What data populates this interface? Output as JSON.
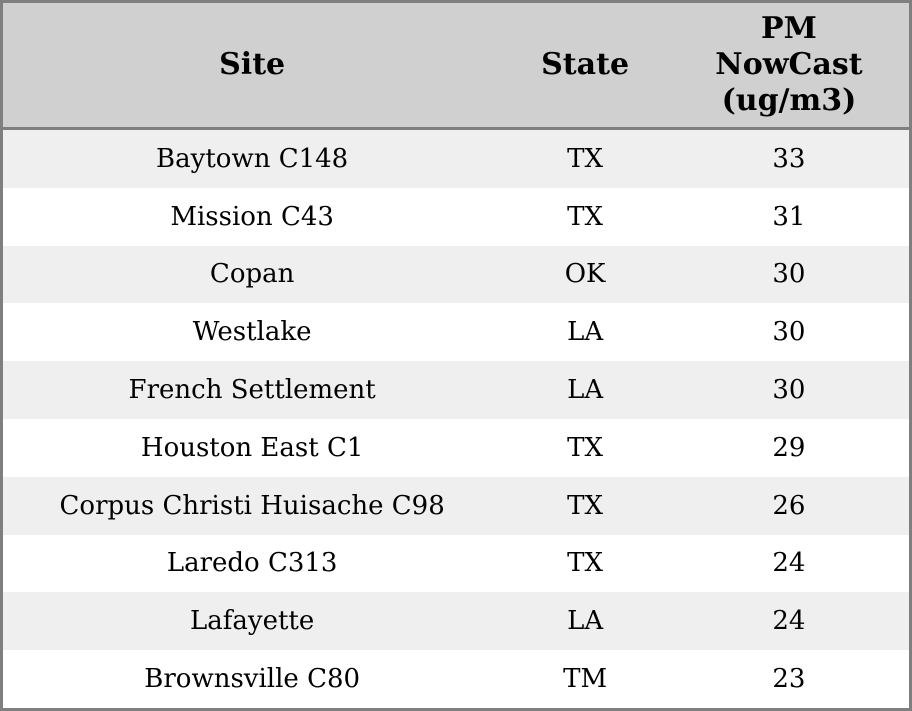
{
  "chart_data": {
    "type": "table",
    "columns": [
      "Site",
      "State",
      "PM NowCast (ug/m3)"
    ],
    "rows": [
      [
        "Baytown C148",
        "TX",
        33
      ],
      [
        "Mission C43",
        "TX",
        31
      ],
      [
        "Copan",
        "OK",
        30
      ],
      [
        "Westlake",
        "LA",
        30
      ],
      [
        "French Settlement",
        "LA",
        30
      ],
      [
        "Houston East C1",
        "TX",
        29
      ],
      [
        "Corpus Christi Huisache C98",
        "TX",
        26
      ],
      [
        "Laredo C313",
        "TX",
        24
      ],
      [
        "Lafayette",
        "LA",
        24
      ],
      [
        "Brownsville C80",
        "TM",
        23
      ]
    ]
  },
  "header": {
    "site": "Site",
    "state": "State",
    "pm": "PM\nNowCast\n(ug/m3)"
  },
  "colors": {
    "header_bg": "#d0d0d0",
    "row_odd_bg": "#efefef",
    "row_even_bg": "#ffffff",
    "border": "#7f7f7f",
    "text": "#000000"
  }
}
